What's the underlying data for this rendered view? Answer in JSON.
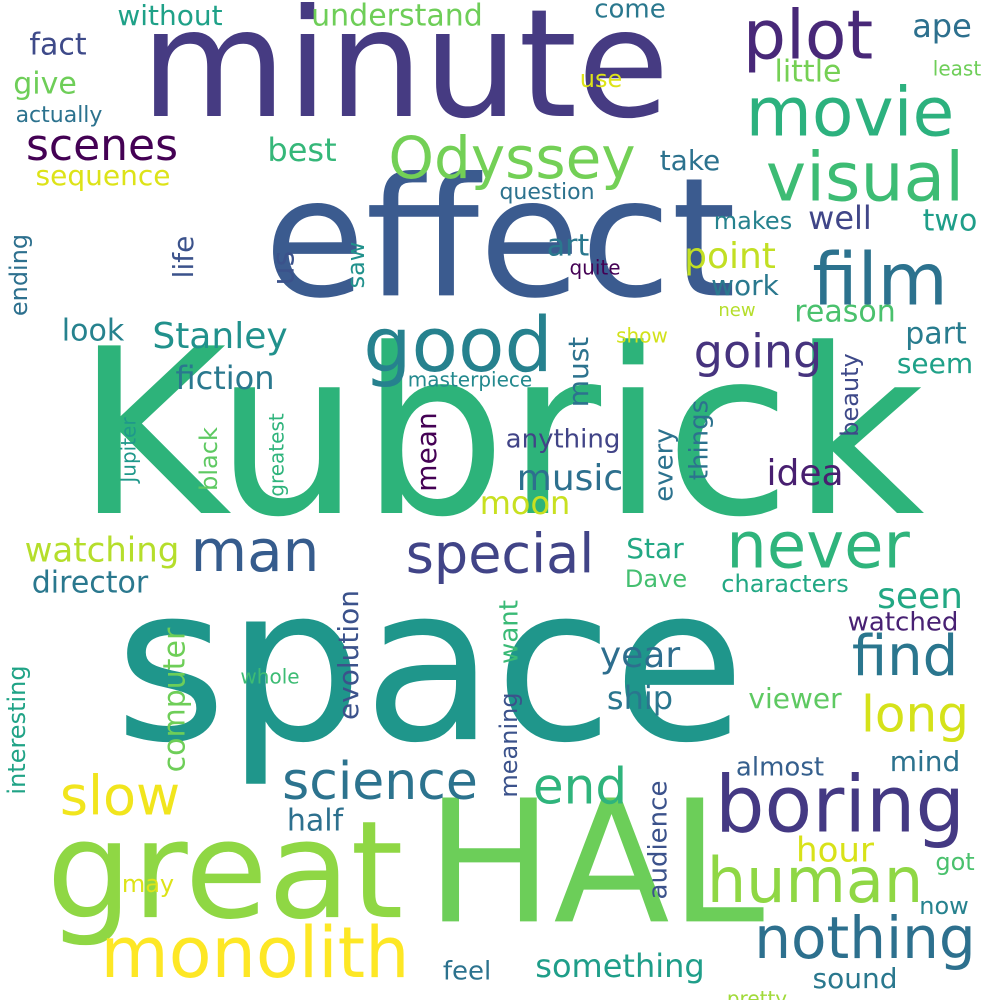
{
  "word_cloud": {
    "background": "#ffffff",
    "palette": "viridis",
    "words": [
      {
        "text": "Kubrick",
        "color": "#2db37a"
      },
      {
        "text": "space",
        "color": "#1f968b"
      },
      {
        "text": "effect",
        "color": "#3b5b8f"
      },
      {
        "text": "minute",
        "color": "#463b82"
      },
      {
        "text": "HAL",
        "color": "#6cce59"
      },
      {
        "text": "great",
        "color": "#8fd744"
      },
      {
        "text": "boring",
        "color": "#443983"
      },
      {
        "text": "film",
        "color": "#2c728e"
      },
      {
        "text": "movie",
        "color": "#2cb17e"
      },
      {
        "text": "visual",
        "color": "#3dbc74"
      },
      {
        "text": "never",
        "color": "#2fb47c"
      },
      {
        "text": "good",
        "color": "#26818e"
      },
      {
        "text": "monolith",
        "color": "#fde725"
      },
      {
        "text": "human",
        "color": "#8fd744"
      },
      {
        "text": "nothing",
        "color": "#2d708e"
      },
      {
        "text": "plot",
        "color": "#482878"
      },
      {
        "text": "Odyssey",
        "color": "#73d056"
      },
      {
        "text": "special",
        "color": "#414487"
      },
      {
        "text": "science",
        "color": "#2c738e"
      },
      {
        "text": "man",
        "color": "#365c8d"
      },
      {
        "text": "find",
        "color": "#2a768e"
      },
      {
        "text": "long",
        "color": "#d5e21a"
      },
      {
        "text": "slow",
        "color": "#f1e51d"
      },
      {
        "text": "end",
        "color": "#2fb47c"
      },
      {
        "text": "scenes",
        "color": "#440154"
      },
      {
        "text": "going",
        "color": "#46337e"
      },
      {
        "text": "music",
        "color": "#2d708e"
      },
      {
        "text": "evolution",
        "color": "#3b528b"
      },
      {
        "text": "watching",
        "color": "#b5de2b"
      },
      {
        "text": "Stanley",
        "color": "#21918c"
      },
      {
        "text": "fiction",
        "color": "#2a788e"
      },
      {
        "text": "seen",
        "color": "#22a884"
      },
      {
        "text": "year",
        "color": "#2e6e8e"
      },
      {
        "text": "hour",
        "color": "#d8e219"
      },
      {
        "text": "computer",
        "color": "#6ece58"
      },
      {
        "text": "director",
        "color": "#2a788e"
      },
      {
        "text": "ship",
        "color": "#2a768e"
      },
      {
        "text": "point",
        "color": "#c2df23"
      },
      {
        "text": "idea",
        "color": "#481f70"
      },
      {
        "text": "understand",
        "color": "#6ece58"
      },
      {
        "text": "without",
        "color": "#1fa188"
      },
      {
        "text": "fact",
        "color": "#3e4a89"
      },
      {
        "text": "best",
        "color": "#35b779"
      },
      {
        "text": "sequence",
        "color": "#dde318"
      },
      {
        "text": "give",
        "color": "#6ece58"
      },
      {
        "text": "interesting",
        "color": "#20a386"
      },
      {
        "text": "half",
        "color": "#2d708e"
      },
      {
        "text": "part",
        "color": "#287c8e"
      },
      {
        "text": "reason",
        "color": "#4ac16d"
      },
      {
        "text": "must",
        "color": "#2c728e"
      },
      {
        "text": "mean",
        "color": "#440154"
      },
      {
        "text": "ending",
        "color": "#2d708e"
      },
      {
        "text": "look",
        "color": "#26828e"
      },
      {
        "text": "life",
        "color": "#3b528b"
      },
      {
        "text": "us",
        "color": "#3b528b"
      },
      {
        "text": "two",
        "color": "#1f9e89"
      },
      {
        "text": "well",
        "color": "#404688"
      },
      {
        "text": "take",
        "color": "#2c728e"
      },
      {
        "text": "ape",
        "color": "#2d708e"
      },
      {
        "text": "little",
        "color": "#75d054"
      },
      {
        "text": "art",
        "color": "#2a788e"
      },
      {
        "text": "work",
        "color": "#2a788e"
      },
      {
        "text": "seem",
        "color": "#1fa188"
      },
      {
        "text": "Star",
        "color": "#22a884"
      },
      {
        "text": "Dave",
        "color": "#44bf70"
      },
      {
        "text": "characters",
        "color": "#22a884"
      },
      {
        "text": "watched",
        "color": "#482173"
      },
      {
        "text": "viewer",
        "color": "#5ec962"
      },
      {
        "text": "mind",
        "color": "#2c728e"
      },
      {
        "text": "almost",
        "color": "#355f8d"
      },
      {
        "text": "anything",
        "color": "#414487"
      },
      {
        "text": "moon",
        "color": "#c8e020"
      },
      {
        "text": "want",
        "color": "#3aba76"
      },
      {
        "text": "meaning",
        "color": "#3b528b"
      },
      {
        "text": "every",
        "color": "#2c728e"
      },
      {
        "text": "things",
        "color": "#2c728e"
      },
      {
        "text": "black",
        "color": "#5ec962"
      },
      {
        "text": "beauty",
        "color": "#3e4989"
      },
      {
        "text": "greatest",
        "color": "#2fb47c"
      },
      {
        "text": "Jupiter",
        "color": "#1f988b"
      },
      {
        "text": "audience",
        "color": "#3b528b"
      },
      {
        "text": "masterpiece",
        "color": "#23898e"
      },
      {
        "text": "whole",
        "color": "#3dbc74"
      },
      {
        "text": "something",
        "color": "#1f9e89"
      },
      {
        "text": "feel",
        "color": "#2c728e"
      },
      {
        "text": "pretty",
        "color": "#a0da39"
      },
      {
        "text": "sound",
        "color": "#2a788e"
      },
      {
        "text": "now",
        "color": "#26828e"
      },
      {
        "text": "got",
        "color": "#4ac16d"
      },
      {
        "text": "may",
        "color": "#dde318"
      },
      {
        "text": "saw",
        "color": "#21918c"
      },
      {
        "text": "quite",
        "color": "#440154"
      },
      {
        "text": "new",
        "color": "#b5de2b"
      },
      {
        "text": "show",
        "color": "#d2e21b"
      },
      {
        "text": "makes",
        "color": "#26828e"
      },
      {
        "text": "question",
        "color": "#2c728e"
      },
      {
        "text": "come",
        "color": "#2a788e"
      },
      {
        "text": "use",
        "color": "#dde318"
      },
      {
        "text": "least",
        "color": "#6ece58"
      },
      {
        "text": "actually",
        "color": "#2c728e"
      }
    ]
  }
}
